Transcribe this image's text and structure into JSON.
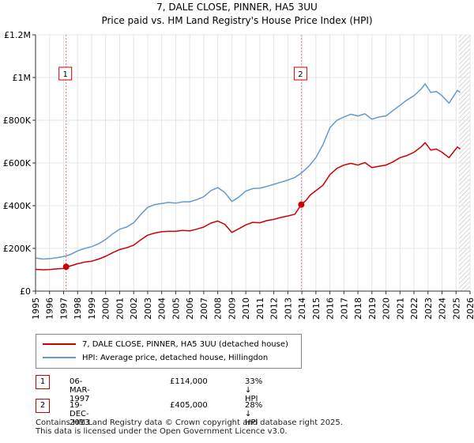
{
  "header": {
    "title": "7, DALE CLOSE, PINNER, HA5 3UU",
    "subtitle": "Price paid vs. HM Land Registry's House Price Index (HPI)"
  },
  "colors": {
    "property": "#cc0000",
    "hpi": "#6699cc",
    "marker_line": "#dd6666",
    "shade": "#e8eef8",
    "grid": "#e4e4e4"
  },
  "chart_data": {
    "type": "line",
    "title": "7, DALE CLOSE, PINNER, HA5 3UU",
    "subtitle": "Price paid vs. HM Land Registry's House Price Index (HPI)",
    "xlabel": "",
    "ylabel": "",
    "xlim": [
      1995,
      2026
    ],
    "ylim": [
      0,
      1200000
    ],
    "grid": true,
    "x_ticks": [
      1995,
      1996,
      1997,
      1998,
      1999,
      2000,
      2001,
      2002,
      2003,
      2004,
      2005,
      2006,
      2007,
      2008,
      2009,
      2010,
      2011,
      2012,
      2013,
      2014,
      2015,
      2016,
      2017,
      2018,
      2019,
      2020,
      2021,
      2022,
      2023,
      2024,
      2025,
      2026
    ],
    "y_ticks": [
      {
        "value": 0,
        "label": "£0"
      },
      {
        "value": 200000,
        "label": "£200K"
      },
      {
        "value": 400000,
        "label": "£400K"
      },
      {
        "value": 600000,
        "label": "£600K"
      },
      {
        "value": 800000,
        "label": "£800K"
      },
      {
        "value": 1000000,
        "label": "£1M"
      },
      {
        "value": 1200000,
        "label": "£1.2M"
      }
    ],
    "series": [
      {
        "name": "7, DALE CLOSE, PINNER, HA5 3UU (detached house)",
        "color": "#cc0000",
        "points": [
          [
            1995.0,
            102000
          ],
          [
            1995.5,
            100000
          ],
          [
            1996.0,
            101000
          ],
          [
            1996.5,
            104000
          ],
          [
            1997.0,
            106000
          ],
          [
            1997.18,
            114000
          ],
          [
            1997.5,
            118000
          ],
          [
            1998.0,
            128000
          ],
          [
            1998.5,
            136000
          ],
          [
            1999.0,
            140000
          ],
          [
            1999.5,
            150000
          ],
          [
            2000.0,
            163000
          ],
          [
            2000.5,
            180000
          ],
          [
            2001.0,
            195000
          ],
          [
            2001.5,
            203000
          ],
          [
            2002.0,
            215000
          ],
          [
            2002.5,
            240000
          ],
          [
            2003.0,
            262000
          ],
          [
            2003.5,
            272000
          ],
          [
            2004.0,
            278000
          ],
          [
            2004.5,
            280000
          ],
          [
            2005.0,
            280000
          ],
          [
            2005.5,
            284000
          ],
          [
            2006.0,
            282000
          ],
          [
            2006.5,
            290000
          ],
          [
            2007.0,
            300000
          ],
          [
            2007.5,
            318000
          ],
          [
            2008.0,
            328000
          ],
          [
            2008.5,
            313000
          ],
          [
            2009.0,
            275000
          ],
          [
            2009.5,
            292000
          ],
          [
            2010.0,
            310000
          ],
          [
            2010.5,
            322000
          ],
          [
            2011.0,
            320000
          ],
          [
            2011.5,
            330000
          ],
          [
            2012.0,
            336000
          ],
          [
            2012.5,
            345000
          ],
          [
            2013.0,
            352000
          ],
          [
            2013.5,
            360000
          ],
          [
            2013.96,
            405000
          ],
          [
            2014.3,
            425000
          ],
          [
            2014.6,
            450000
          ],
          [
            2015.0,
            470000
          ],
          [
            2015.5,
            495000
          ],
          [
            2016.0,
            545000
          ],
          [
            2016.5,
            575000
          ],
          [
            2017.0,
            590000
          ],
          [
            2017.5,
            598000
          ],
          [
            2018.0,
            590000
          ],
          [
            2018.5,
            602000
          ],
          [
            2019.0,
            578000
          ],
          [
            2019.5,
            585000
          ],
          [
            2020.0,
            590000
          ],
          [
            2020.5,
            605000
          ],
          [
            2021.0,
            625000
          ],
          [
            2021.5,
            635000
          ],
          [
            2022.0,
            650000
          ],
          [
            2022.5,
            675000
          ],
          [
            2022.8,
            695000
          ],
          [
            2023.2,
            660000
          ],
          [
            2023.6,
            665000
          ],
          [
            2024.0,
            650000
          ],
          [
            2024.5,
            625000
          ],
          [
            2024.8,
            650000
          ],
          [
            2025.1,
            675000
          ],
          [
            2025.3,
            665000
          ]
        ]
      },
      {
        "name": "HPI: Average price, detached house, Hillingdon",
        "color": "#6699cc",
        "points": [
          [
            1995.0,
            155000
          ],
          [
            1995.5,
            150000
          ],
          [
            1996.0,
            152000
          ],
          [
            1996.5,
            156000
          ],
          [
            1997.0,
            162000
          ],
          [
            1997.5,
            172000
          ],
          [
            1998.0,
            188000
          ],
          [
            1998.5,
            200000
          ],
          [
            1999.0,
            208000
          ],
          [
            1999.5,
            222000
          ],
          [
            2000.0,
            242000
          ],
          [
            2000.5,
            268000
          ],
          [
            2001.0,
            290000
          ],
          [
            2001.5,
            300000
          ],
          [
            2002.0,
            320000
          ],
          [
            2002.5,
            358000
          ],
          [
            2003.0,
            392000
          ],
          [
            2003.5,
            405000
          ],
          [
            2004.0,
            410000
          ],
          [
            2004.5,
            415000
          ],
          [
            2005.0,
            412000
          ],
          [
            2005.5,
            418000
          ],
          [
            2006.0,
            418000
          ],
          [
            2006.5,
            428000
          ],
          [
            2007.0,
            442000
          ],
          [
            2007.5,
            470000
          ],
          [
            2008.0,
            485000
          ],
          [
            2008.5,
            462000
          ],
          [
            2009.0,
            420000
          ],
          [
            2009.5,
            440000
          ],
          [
            2010.0,
            468000
          ],
          [
            2010.5,
            480000
          ],
          [
            2011.0,
            482000
          ],
          [
            2011.5,
            490000
          ],
          [
            2012.0,
            500000
          ],
          [
            2012.5,
            510000
          ],
          [
            2013.0,
            520000
          ],
          [
            2013.5,
            532000
          ],
          [
            2014.0,
            555000
          ],
          [
            2014.5,
            585000
          ],
          [
            2015.0,
            625000
          ],
          [
            2015.5,
            685000
          ],
          [
            2016.0,
            765000
          ],
          [
            2016.5,
            800000
          ],
          [
            2017.0,
            815000
          ],
          [
            2017.5,
            828000
          ],
          [
            2018.0,
            820000
          ],
          [
            2018.5,
            830000
          ],
          [
            2019.0,
            805000
          ],
          [
            2019.5,
            815000
          ],
          [
            2020.0,
            820000
          ],
          [
            2020.5,
            845000
          ],
          [
            2021.0,
            870000
          ],
          [
            2021.5,
            895000
          ],
          [
            2022.0,
            915000
          ],
          [
            2022.5,
            945000
          ],
          [
            2022.8,
            970000
          ],
          [
            2023.2,
            930000
          ],
          [
            2023.6,
            935000
          ],
          [
            2024.0,
            915000
          ],
          [
            2024.5,
            880000
          ],
          [
            2024.8,
            910000
          ],
          [
            2025.1,
            940000
          ],
          [
            2025.3,
            930000
          ]
        ]
      }
    ],
    "markers": [
      {
        "label": "1",
        "x": 1997.18,
        "y": 114000
      },
      {
        "label": "2",
        "x": 2013.96,
        "y": 405000
      }
    ],
    "shaded_range": [
      2013.96,
      2014.0
    ],
    "hatched_from": 2025.2
  },
  "legend": {
    "items": [
      {
        "label": "7, DALE CLOSE, PINNER, HA5 3UU (detached house)",
        "color": "#cc0000"
      },
      {
        "label": "HPI: Average price, detached house, Hillingdon",
        "color": "#6699cc"
      }
    ]
  },
  "transactions": [
    {
      "num": "1",
      "date": "06-MAR-1997",
      "price": "£114,000",
      "hpi": "33% ↓ HPI"
    },
    {
      "num": "2",
      "date": "19-DEC-2013",
      "price": "£405,000",
      "hpi": "28% ↓ HPI"
    }
  ],
  "footer": {
    "line1": "Contains HM Land Registry data © Crown copyright and database right 2025.",
    "line2": "This data is licensed under the Open Government Licence v3.0."
  }
}
